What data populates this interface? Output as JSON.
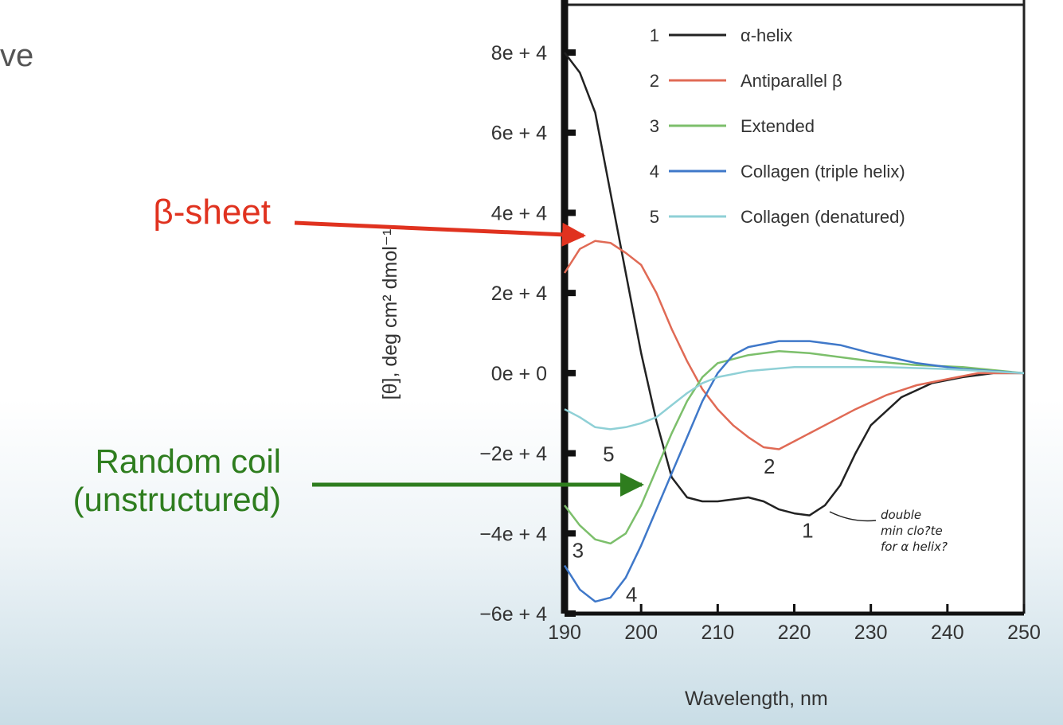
{
  "slide": {
    "fragment_text": "ve",
    "beta_label": "β-sheet",
    "coil_label_line1": "Random coil",
    "coil_label_line2": "(unstructured)",
    "beta_color": "#e0321f",
    "coil_color": "#2e7d1e"
  },
  "chart_data": {
    "type": "line",
    "title": "",
    "xlabel": "Wavelength, nm",
    "ylabel": "[θ], deg cm² dmol⁻¹",
    "xlim": [
      190,
      250
    ],
    "ylim": [
      -60000,
      80000
    ],
    "x_ticks": [
      190,
      200,
      210,
      220,
      230,
      240,
      250
    ],
    "x_tick_labels": [
      "190",
      "200",
      "210",
      "220",
      "230",
      "240",
      "250"
    ],
    "y_ticks": [
      80000,
      60000,
      40000,
      20000,
      0,
      -20000,
      -40000,
      -60000
    ],
    "y_tick_labels": [
      "8e + 4",
      "6e + 4",
      "4e + 4",
      "2e + 4",
      "0e + 0",
      "−2e + 4",
      "−4e + 4",
      "−6e + 4"
    ],
    "legend_placement": "top-right",
    "series": [
      {
        "number": "1",
        "name": "α-helix",
        "color": "#222222",
        "points": [
          [
            190,
            80000
          ],
          [
            192,
            75000
          ],
          [
            194,
            65000
          ],
          [
            196,
            45000
          ],
          [
            198,
            25000
          ],
          [
            200,
            5000
          ],
          [
            202,
            -12000
          ],
          [
            204,
            -26000
          ],
          [
            206,
            -31000
          ],
          [
            208,
            -32000
          ],
          [
            210,
            -32000
          ],
          [
            212,
            -31500
          ],
          [
            214,
            -31000
          ],
          [
            216,
            -32000
          ],
          [
            218,
            -34000
          ],
          [
            220,
            -35000
          ],
          [
            222,
            -35500
          ],
          [
            224,
            -33000
          ],
          [
            226,
            -28000
          ],
          [
            228,
            -20000
          ],
          [
            230,
            -13000
          ],
          [
            234,
            -6000
          ],
          [
            238,
            -2500
          ],
          [
            242,
            -1000
          ],
          [
            246,
            0
          ],
          [
            250,
            0
          ]
        ],
        "label_at": [
          221,
          -41000
        ]
      },
      {
        "number": "2",
        "name": "Antiparallel β",
        "color": "#e06a55",
        "points": [
          [
            190,
            25000
          ],
          [
            192,
            31000
          ],
          [
            194,
            33000
          ],
          [
            196,
            32500
          ],
          [
            198,
            30000
          ],
          [
            200,
            27000
          ],
          [
            202,
            20000
          ],
          [
            204,
            11000
          ],
          [
            206,
            3000
          ],
          [
            208,
            -4000
          ],
          [
            210,
            -9000
          ],
          [
            212,
            -13000
          ],
          [
            214,
            -16000
          ],
          [
            216,
            -18500
          ],
          [
            218,
            -19000
          ],
          [
            220,
            -17000
          ],
          [
            224,
            -13000
          ],
          [
            228,
            -9000
          ],
          [
            232,
            -5500
          ],
          [
            236,
            -3000
          ],
          [
            240,
            -1500
          ],
          [
            244,
            0
          ],
          [
            250,
            0
          ]
        ],
        "label_at": [
          216,
          -25000
        ]
      },
      {
        "number": "3",
        "name": "Extended",
        "color": "#7cbf6b",
        "points": [
          [
            190,
            -33000
          ],
          [
            192,
            -38000
          ],
          [
            194,
            -41500
          ],
          [
            196,
            -42500
          ],
          [
            198,
            -40000
          ],
          [
            200,
            -33000
          ],
          [
            202,
            -24000
          ],
          [
            204,
            -15000
          ],
          [
            206,
            -7000
          ],
          [
            208,
            -1000
          ],
          [
            210,
            2500
          ],
          [
            214,
            4500
          ],
          [
            218,
            5500
          ],
          [
            222,
            5000
          ],
          [
            226,
            4000
          ],
          [
            230,
            3000
          ],
          [
            236,
            2000
          ],
          [
            242,
            1500
          ],
          [
            250,
            0
          ]
        ],
        "label_at": [
          191,
          -46000
        ]
      },
      {
        "number": "4",
        "name": "Collagen (triple helix)",
        "color": "#3f78c9",
        "points": [
          [
            190,
            -48000
          ],
          [
            192,
            -54000
          ],
          [
            194,
            -57000
          ],
          [
            196,
            -56000
          ],
          [
            198,
            -51000
          ],
          [
            200,
            -43000
          ],
          [
            202,
            -34000
          ],
          [
            204,
            -25000
          ],
          [
            206,
            -16000
          ],
          [
            208,
            -7000
          ],
          [
            210,
            0
          ],
          [
            212,
            4500
          ],
          [
            214,
            6500
          ],
          [
            218,
            8000
          ],
          [
            222,
            8000
          ],
          [
            226,
            7000
          ],
          [
            230,
            5000
          ],
          [
            236,
            2500
          ],
          [
            242,
            1000
          ],
          [
            250,
            0
          ]
        ],
        "label_at": [
          198,
          -57000
        ]
      },
      {
        "number": "5",
        "name": "Collagen (denatured)",
        "color": "#8fd0d6",
        "points": [
          [
            190,
            -9000
          ],
          [
            192,
            -11000
          ],
          [
            194,
            -13500
          ],
          [
            196,
            -14000
          ],
          [
            198,
            -13500
          ],
          [
            200,
            -12500
          ],
          [
            202,
            -11000
          ],
          [
            204,
            -8000
          ],
          [
            206,
            -5000
          ],
          [
            208,
            -2500
          ],
          [
            210,
            -1000
          ],
          [
            214,
            500
          ],
          [
            220,
            1500
          ],
          [
            226,
            1500
          ],
          [
            232,
            1500
          ],
          [
            240,
            1000
          ],
          [
            250,
            0
          ]
        ],
        "label_at": [
          195,
          -22000
        ]
      }
    ],
    "annotations": [
      {
        "text_line1": "double",
        "text_line2": "min clo?te",
        "text_line3": "for α helix?",
        "points_to": [
          224,
          -33500
        ]
      }
    ]
  }
}
